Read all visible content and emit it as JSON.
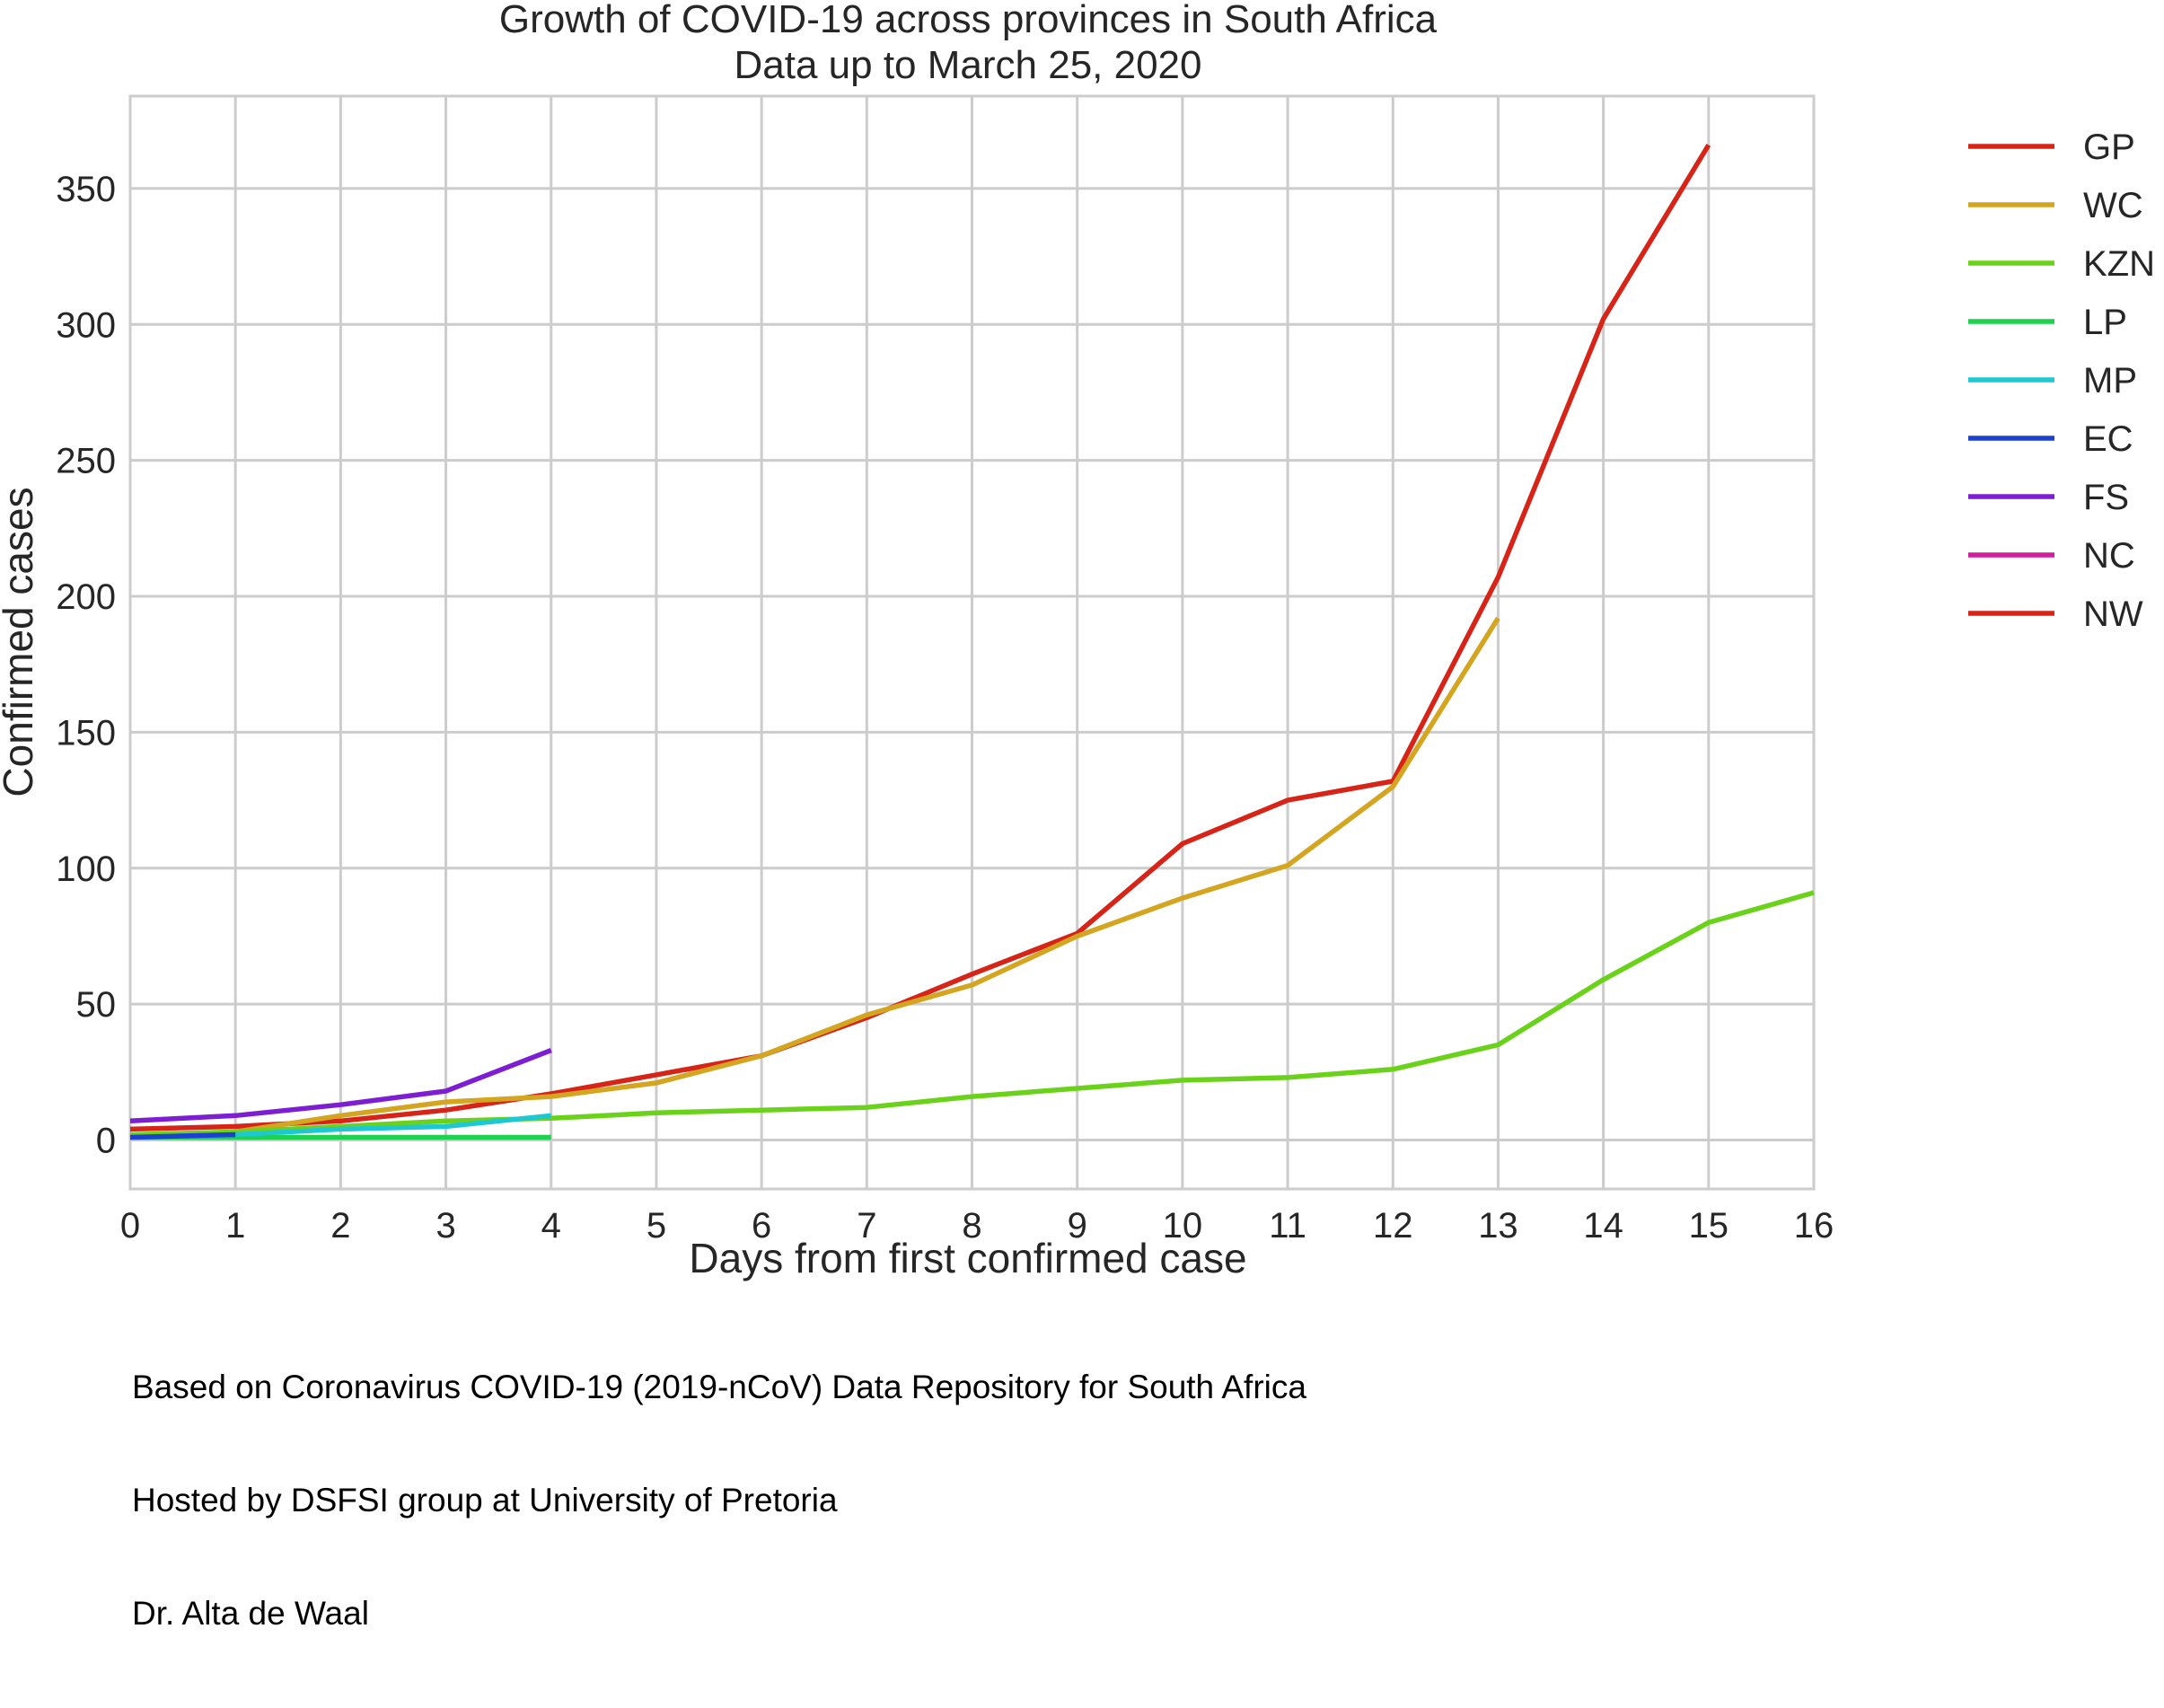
{
  "chart_data": {
    "type": "line",
    "title": "Growth of COVID-19 across provinces in South Africa",
    "subtitle": "Data up to March 25, 2020",
    "xlabel": "Days from first confirmed case",
    "ylabel": "Confirmed cases",
    "xlim": [
      0,
      16
    ],
    "ylim": [
      -18,
      384
    ],
    "xticks": [
      0,
      1,
      2,
      3,
      4,
      5,
      6,
      7,
      8,
      9,
      10,
      11,
      12,
      13,
      14,
      15,
      16
    ],
    "yticks": [
      0,
      50,
      100,
      150,
      200,
      250,
      300,
      350
    ],
    "grid": true,
    "legend_position": "outside-right",
    "series": [
      {
        "name": "GP",
        "color": "#d62518",
        "x": [
          0,
          1,
          2,
          3,
          4,
          5,
          6,
          7,
          8,
          9,
          10,
          11,
          12,
          13,
          14,
          15
        ],
        "values": [
          4,
          5,
          7,
          11,
          17,
          24,
          31,
          45,
          61,
          76,
          109,
          125,
          132,
          207,
          302,
          366
        ]
      },
      {
        "name": "WC",
        "color": "#d4a521",
        "x": [
          0,
          1,
          2,
          3,
          4,
          5,
          6,
          7,
          8,
          9,
          10,
          11,
          12,
          13
        ],
        "values": [
          1,
          3,
          9,
          14,
          16,
          21,
          31,
          46,
          57,
          75,
          89,
          101,
          130,
          192
        ]
      },
      {
        "name": "KZN",
        "color": "#6bd21b",
        "x": [
          0,
          1,
          2,
          3,
          4,
          5,
          6,
          7,
          8,
          9,
          10,
          11,
          12,
          13,
          14,
          15,
          16
        ],
        "values": [
          2,
          3,
          5,
          7,
          8,
          10,
          11,
          12,
          16,
          19,
          22,
          23,
          26,
          35,
          59,
          80,
          91
        ]
      },
      {
        "name": "LP",
        "color": "#1ed250",
        "x": [
          0,
          1,
          2,
          3,
          4
        ],
        "values": [
          1,
          1,
          1,
          1,
          1
        ]
      },
      {
        "name": "MP",
        "color": "#1ec8d2",
        "x": [
          0,
          1,
          2,
          3,
          4
        ],
        "values": [
          1,
          2,
          4,
          5,
          9
        ]
      },
      {
        "name": "EC",
        "color": "#1e40d2",
        "x": [
          0,
          1
        ],
        "values": [
          1,
          2
        ]
      },
      {
        "name": "FS",
        "color": "#7e1ed2",
        "x": [
          0,
          1,
          2,
          3,
          4
        ],
        "values": [
          7,
          9,
          13,
          18,
          33
        ]
      },
      {
        "name": "NC",
        "color": "#d21e9e",
        "x": [
          0
        ],
        "values": [
          0
        ]
      },
      {
        "name": "NW",
        "color": "#d62518",
        "x": [
          0
        ],
        "values": [
          0
        ]
      }
    ]
  },
  "footer": {
    "line1": "Based on Coronavirus COVID-19 (2019-nCoV) Data Repository for South Africa",
    "line2": "Hosted by DSFSI group at University of Pretoria",
    "line3": "Dr. Alta de Waal"
  }
}
